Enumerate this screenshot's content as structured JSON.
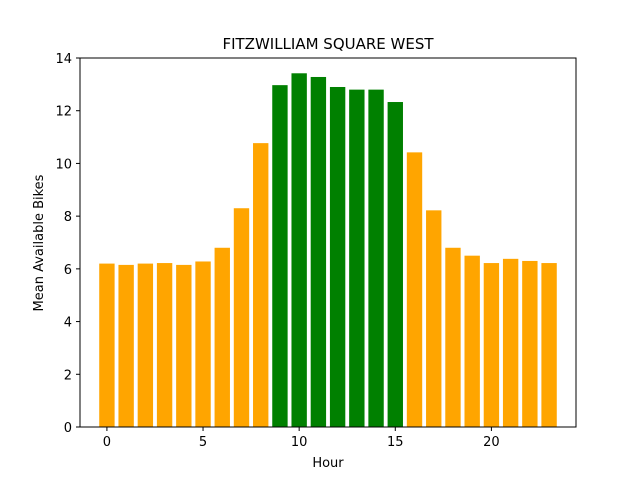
{
  "chart_data": {
    "type": "bar",
    "title": "FITZWILLIAM SQUARE WEST",
    "xlabel": "Hour",
    "ylabel": "Mean Available Bikes",
    "x": [
      0,
      1,
      2,
      3,
      4,
      5,
      6,
      7,
      8,
      9,
      10,
      11,
      12,
      13,
      14,
      15,
      16,
      17,
      18,
      19,
      20,
      21,
      22,
      23
    ],
    "values": [
      6.2,
      6.15,
      6.2,
      6.22,
      6.15,
      6.28,
      6.8,
      8.3,
      10.77,
      12.97,
      13.42,
      13.28,
      12.9,
      12.8,
      12.8,
      12.33,
      10.42,
      8.22,
      6.8,
      6.5,
      6.22,
      6.38,
      6.3,
      6.22
    ],
    "colors": [
      "orange",
      "orange",
      "orange",
      "orange",
      "orange",
      "orange",
      "orange",
      "orange",
      "orange",
      "green",
      "green",
      "green",
      "green",
      "green",
      "green",
      "green",
      "orange",
      "orange",
      "orange",
      "orange",
      "orange",
      "orange",
      "orange",
      "orange"
    ],
    "color_map": {
      "orange": "#ffa500",
      "green": "#008000"
    },
    "xlim": [
      -1.4,
      24.4
    ],
    "ylim": [
      0,
      14
    ],
    "xticks": [
      "0",
      "5",
      "10",
      "15",
      "20"
    ],
    "yticks": [
      "0",
      "2",
      "4",
      "6",
      "8",
      "10",
      "12",
      "14"
    ],
    "grid": false,
    "legend": "none"
  }
}
